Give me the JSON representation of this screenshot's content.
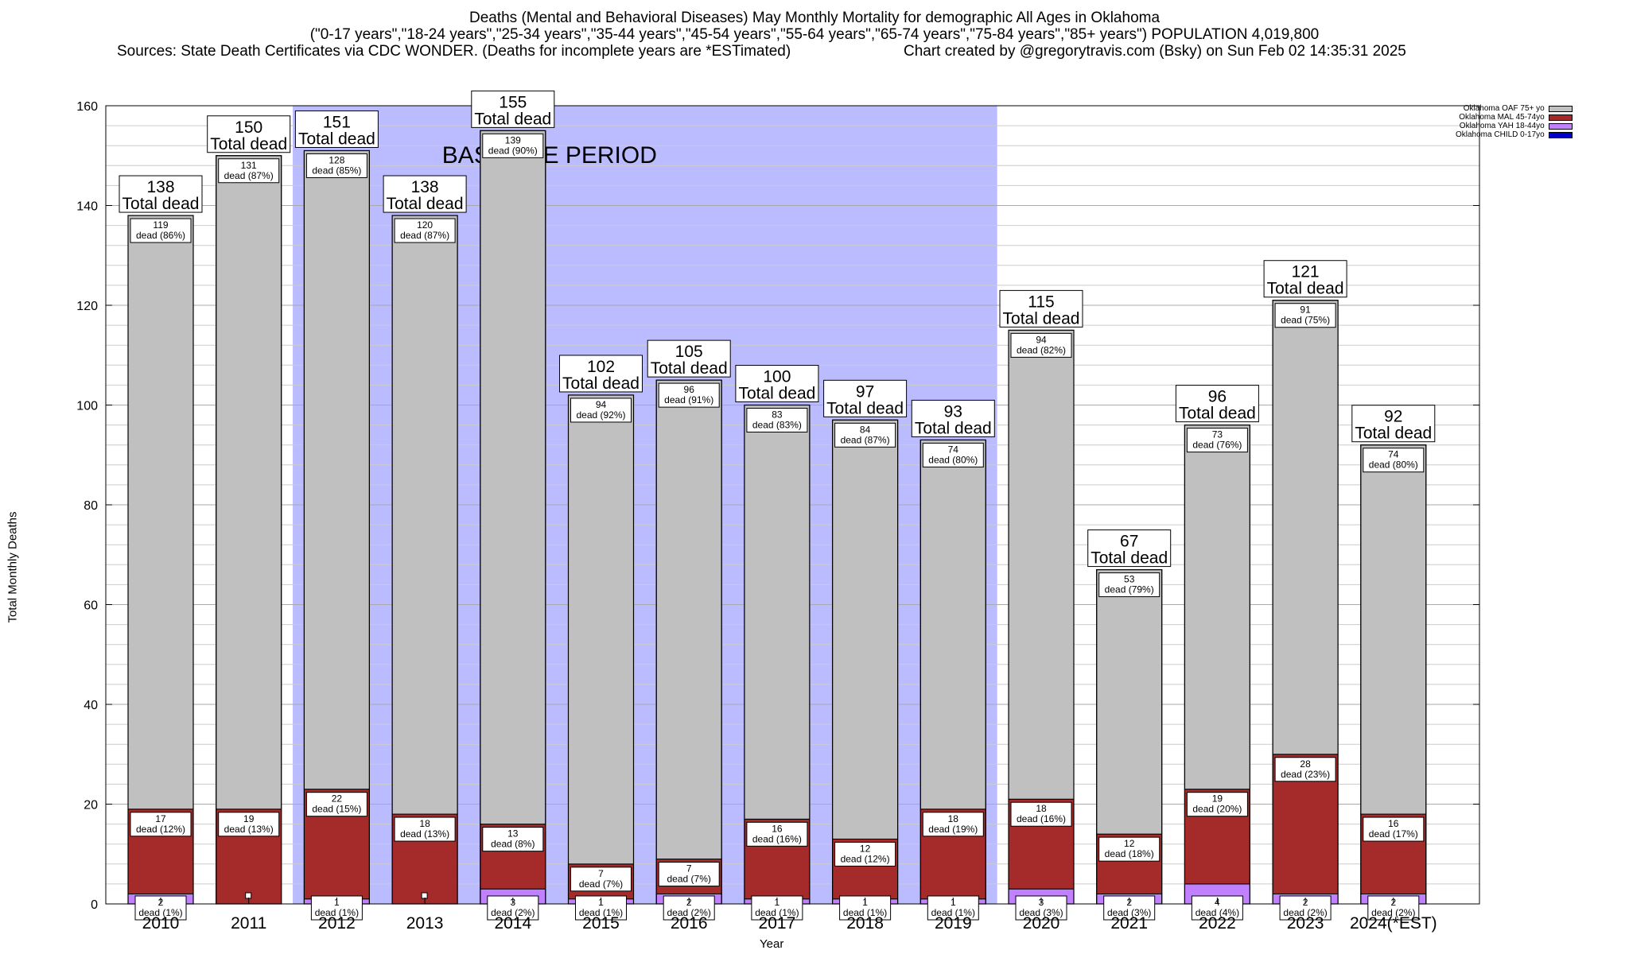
{
  "chart_data": {
    "type": "bar",
    "stacked": true,
    "title": "Deaths (Mental and Behavioral Diseases) May Monthly Mortality for demographic All Ages in Oklahoma",
    "subtitle": "(\"0-17 years\",\"18-24 years\",\"25-34 years\",\"35-44 years\",\"45-54 years\",\"55-64 years\",\"65-74 years\",\"75-84 years\",\"85+ years\") POPULATION 4,019,800",
    "sources": "Sources: State Death Certificates via CDC WONDER. (Deaths for incomplete years are *ESTimated)",
    "credit": "Chart created by @gregorytravis.com (Bsky) on Sun Feb 02 14:35:31 2025",
    "xlabel": "Year",
    "ylabel": "Total Monthly Deaths",
    "ylim": [
      0,
      160
    ],
    "yticks": [
      0,
      20,
      40,
      60,
      80,
      100,
      120,
      140,
      160
    ],
    "grid": true,
    "legend_position": "top-right",
    "baseline_label": "BASELINE PERIOD",
    "baseline_categories": [
      "2012",
      "2019"
    ],
    "total_label": "Total dead",
    "dead_word": "dead",
    "categories": [
      "2010",
      "2011",
      "2012",
      "2013",
      "2014",
      "2015",
      "2016",
      "2017",
      "2018",
      "2019",
      "2020",
      "2021",
      "2022",
      "2023",
      "2024(*EST)"
    ],
    "totals": [
      138,
      150,
      151,
      138,
      155,
      102,
      105,
      100,
      97,
      93,
      115,
      67,
      96,
      121,
      92
    ],
    "series": [
      {
        "name": "Oklahoma CHILD 0-17yo",
        "color": "#0000cc",
        "values": [
          0,
          0,
          0,
          0,
          0,
          0,
          0,
          0,
          0,
          0,
          0,
          0,
          0,
          0,
          0
        ],
        "pct": [
          null,
          null,
          null,
          null,
          null,
          null,
          null,
          null,
          null,
          null,
          null,
          null,
          null,
          null,
          null
        ]
      },
      {
        "name": "Oklahoma YAH 18-44yo",
        "color": "#c080ff",
        "values": [
          2,
          0,
          1,
          0,
          3,
          1,
          2,
          1,
          1,
          1,
          3,
          2,
          4,
          2,
          2
        ],
        "pct": [
          "1%",
          null,
          "1%",
          null,
          "2%",
          "1%",
          "2%",
          "1%",
          "1%",
          "1%",
          "3%",
          "3%",
          "4%",
          "2%",
          "2%"
        ]
      },
      {
        "name": "Oklahoma MAL 45-74yo",
        "color": "#a52a2a",
        "values": [
          17,
          19,
          22,
          18,
          13,
          7,
          7,
          16,
          12,
          18,
          18,
          12,
          19,
          28,
          16
        ],
        "pct": [
          "12%",
          "13%",
          "15%",
          "13%",
          "8%",
          "7%",
          "7%",
          "16%",
          "12%",
          "19%",
          "16%",
          "18%",
          "20%",
          "23%",
          "17%"
        ]
      },
      {
        "name": "Oklahoma OAF 75+ yo",
        "color": "#c0c0c0",
        "values": [
          119,
          131,
          128,
          120,
          139,
          94,
          96,
          83,
          84,
          74,
          94,
          53,
          73,
          91,
          74
        ],
        "pct": [
          "86%",
          "87%",
          "85%",
          "87%",
          "90%",
          "92%",
          "91%",
          "83%",
          "87%",
          "80%",
          "82%",
          "79%",
          "76%",
          "75%",
          "80%"
        ]
      }
    ],
    "legend_entries": [
      "Oklahoma OAF 75+ yo",
      "Oklahoma MAL 45-74yo",
      "Oklahoma YAH 18-44yo",
      "Oklahoma CHILD 0-17yo"
    ],
    "colors": {
      "baseline_band": "#bbbbff",
      "grid": "#cccccc"
    }
  }
}
